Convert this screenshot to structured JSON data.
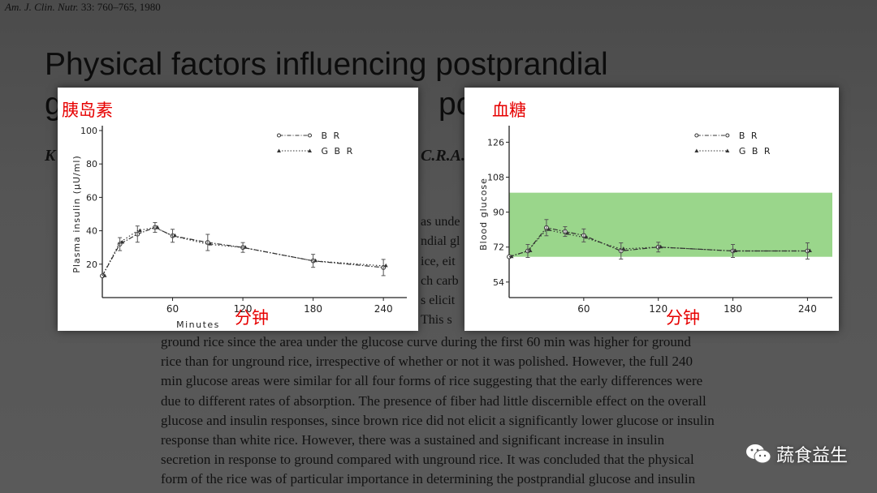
{
  "slide": {
    "journal_ref_italic": "Am. J. Clin. Nutr.",
    "journal_ref_rest": " 33: 760–765, 1980",
    "title_line1": "Physical factors influencing postprandial",
    "title_line2_left": "g",
    "title_line2_right": "por",
    "author_fragment_left": "K",
    "author_fragment_right": "C.R.A.",
    "side_fragments": [
      "as unde",
      "ndial gl",
      "ice, eit",
      "ch carb",
      "s elicit",
      "This s"
    ],
    "body_lines": [
      "ground rice since the area under the glucose curve during the first 60 min was higher for ground",
      "rice than for unground rice, irrespective of whether or not it was polished. However, the full 240",
      "min glucose areas were similar for all four forms of rice suggesting that the early differences were",
      "due to different rates of absorption. The presence of fiber had little discernible effect on the overall",
      "glucose and insulin responses, since brown rice did not elicit a significantly lower glucose or insulin",
      "response than white rice. However, there was a sustained and significant increase in insulin",
      "secretion in response to ground compared with unground rice. It was concluded that the physical",
      "form of the rice was of particular importance in determining the postprandial glucose and insulin"
    ],
    "watermark_text": "蔬食益生",
    "watermark_icon": "wechat-icon"
  },
  "chart_data": [
    {
      "type": "line",
      "annotation_label": "胰岛素",
      "annotation_xlabel": "分钟",
      "ylabel": "Plasma insulin (µU/ml)",
      "xlabel": "Minutes",
      "xlim": [
        0,
        260
      ],
      "ylim": [
        0,
        100
      ],
      "x_ticks": [
        "60",
        "120",
        "180",
        "240"
      ],
      "y_ticks": [
        "20",
        "40",
        "60",
        "80",
        "100"
      ],
      "legend": [
        "B R",
        "G B R"
      ],
      "series": [
        {
          "name": "B R",
          "x": [
            0,
            15,
            30,
            45,
            60,
            90,
            120,
            180,
            240
          ],
          "y": [
            13,
            32,
            38,
            42,
            37,
            33,
            30,
            22,
            18
          ]
        },
        {
          "name": "G B R",
          "x": [
            0,
            15,
            30,
            45,
            60,
            90,
            120,
            180,
            240
          ],
          "y": [
            13,
            33,
            40,
            42,
            37,
            32,
            30,
            22,
            19
          ]
        }
      ]
    },
    {
      "type": "line",
      "annotation_label": "血糖",
      "annotation_xlabel": "分钟",
      "ylabel": "Blood glucose",
      "xlabel": "",
      "xlim": [
        0,
        260
      ],
      "ylim": [
        46,
        132
      ],
      "x_ticks": [
        "60",
        "120",
        "180",
        "240"
      ],
      "y_ticks": [
        "54",
        "72",
        "90",
        "108",
        "126"
      ],
      "legend": [
        "B R",
        "G B R"
      ],
      "highlight_band": {
        "from": 67,
        "to": 100,
        "color": "#8fd27e"
      },
      "series": [
        {
          "name": "B R",
          "x": [
            0,
            15,
            30,
            45,
            60,
            90,
            120,
            180,
            240
          ],
          "y": [
            67,
            70,
            82,
            80,
            78,
            70,
            72,
            70,
            70
          ]
        },
        {
          "name": "G B R",
          "x": [
            0,
            15,
            30,
            45,
            60,
            90,
            120,
            180,
            240
          ],
          "y": [
            67,
            70,
            81,
            79,
            77,
            71,
            72,
            70,
            70
          ]
        }
      ]
    }
  ]
}
